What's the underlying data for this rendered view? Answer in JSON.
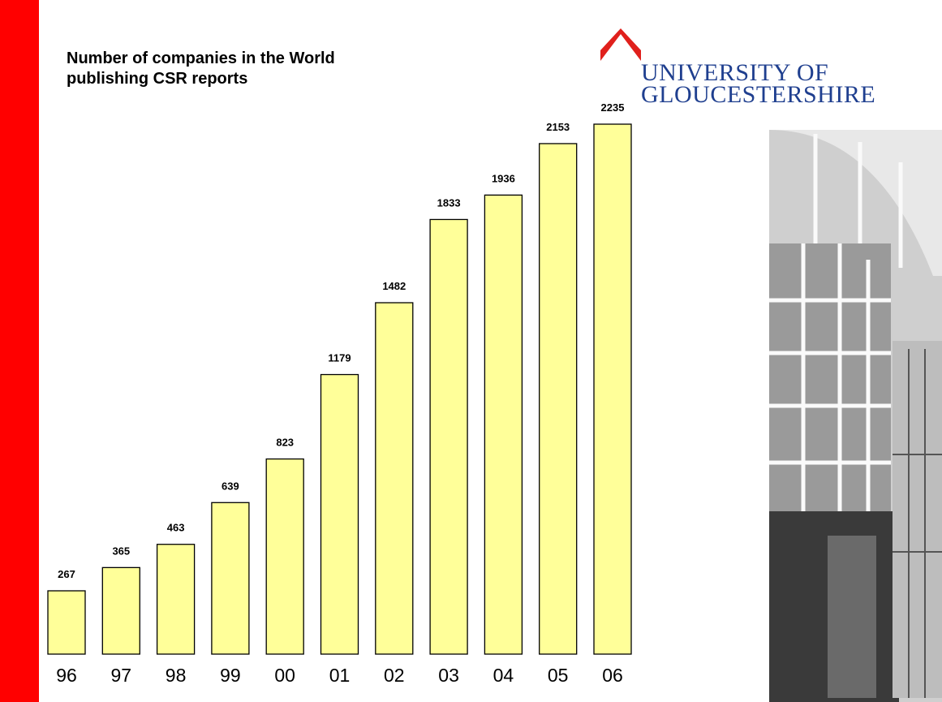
{
  "chart_data": {
    "type": "bar",
    "title": "Number of companies in the World publishing CSR reports",
    "categories": [
      "96",
      "97",
      "98",
      "99",
      "00",
      "01",
      "02",
      "03",
      "04",
      "05",
      "06"
    ],
    "values": [
      267,
      365,
      463,
      639,
      823,
      1179,
      1482,
      1833,
      1936,
      2153,
      2235
    ],
    "color": "#ffff99"
  },
  "logo": {
    "line1": "UNIVERSITY OF",
    "line2": "GLOUCESTERSHIRE"
  }
}
